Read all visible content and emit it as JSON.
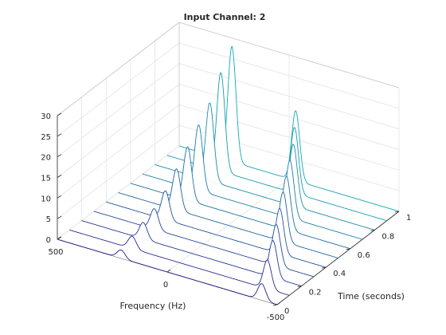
{
  "chart_data": {
    "type": "line",
    "title": "Input Channel: 2",
    "xlabel": "Frequency (Hz)",
    "ylabel": "Time (seconds)",
    "zlabel": "",
    "xlim": [
      -500,
      500
    ],
    "ylim": [
      0,
      1
    ],
    "zlim": [
      0,
      30
    ],
    "x_ticks": [
      500,
      0,
      -500
    ],
    "y_ticks": [
      0,
      0.2,
      0.4,
      0.6,
      0.8,
      1
    ],
    "z_ticks": [
      0,
      5,
      10,
      15,
      20,
      25,
      30
    ],
    "grid": true,
    "legend": "none",
    "colormap": "parula (blue to teal along time)",
    "color_start": "#2a1c8c",
    "color_end": "#13aab4",
    "peak_width_hz": 18,
    "series": [
      {
        "time": 0.0,
        "low_peak_hz": 210,
        "low_peak_amp": 2,
        "high_peak_hz": -430,
        "high_peak_amp": 4
      },
      {
        "time": 0.1,
        "low_peak_hz": 215,
        "low_peak_amp": 3,
        "high_peak_hz": -400,
        "high_peak_amp": 7
      },
      {
        "time": 0.2,
        "low_peak_hz": 220,
        "low_peak_amp": 4,
        "high_peak_hz": -370,
        "high_peak_amp": 9
      },
      {
        "time": 0.3,
        "low_peak_hz": 225,
        "low_peak_amp": 5,
        "high_peak_hz": -330,
        "high_peak_amp": 10
      },
      {
        "time": 0.4,
        "low_peak_hz": 230,
        "low_peak_amp": 7,
        "high_peak_hz": -290,
        "high_peak_amp": 11
      },
      {
        "time": 0.5,
        "low_peak_hz": 235,
        "low_peak_amp": 10,
        "high_peak_hz": -250,
        "high_peak_amp": 12
      },
      {
        "time": 0.6,
        "low_peak_hz": 240,
        "low_peak_amp": 13,
        "high_peak_hz": -210,
        "high_peak_amp": 13
      },
      {
        "time": 0.7,
        "low_peak_hz": 245,
        "low_peak_amp": 16,
        "high_peak_hz": -170,
        "high_peak_amp": 14
      },
      {
        "time": 0.8,
        "low_peak_hz": 250,
        "low_peak_amp": 19,
        "high_peak_hz": -130,
        "high_peak_amp": 15
      },
      {
        "time": 0.9,
        "low_peak_hz": 255,
        "low_peak_amp": 24,
        "high_peak_hz": -80,
        "high_peak_amp": 16
      },
      {
        "time": 1.0,
        "low_peak_hz": 260,
        "low_peak_amp": 28,
        "high_peak_hz": -30,
        "high_peak_amp": 17
      }
    ]
  }
}
